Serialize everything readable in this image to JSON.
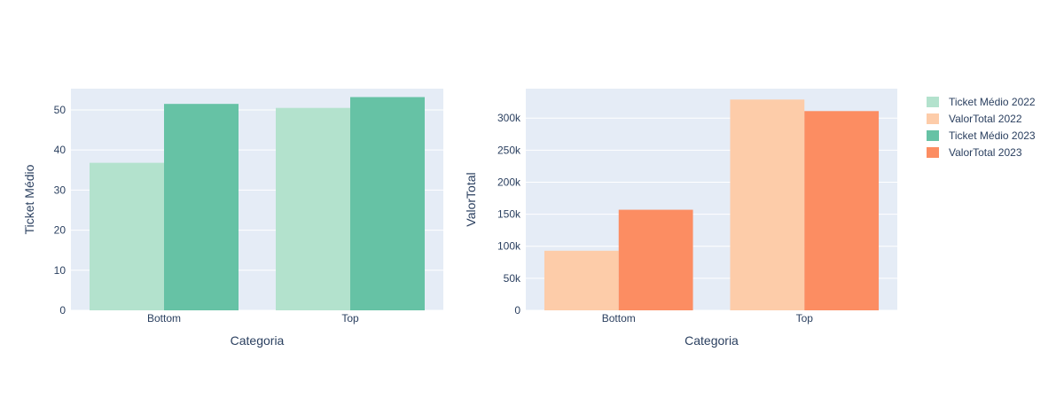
{
  "chart_data": [
    {
      "type": "bar",
      "categories": [
        "Bottom",
        "Top"
      ],
      "series": [
        {
          "name": "Ticket Médio 2022",
          "values": [
            36.8,
            50.5
          ],
          "color": "#b3e2cd"
        },
        {
          "name": "Ticket Médio 2023",
          "values": [
            51.5,
            53.2
          ],
          "color": "#66c2a5"
        }
      ],
      "xlabel": "Categoria",
      "ylabel": "Ticket Médio",
      "ylim": [
        0,
        55.3
      ],
      "yticks": [
        0,
        10,
        20,
        30,
        40,
        50
      ],
      "ytick_labels": [
        "0",
        "10",
        "20",
        "30",
        "40",
        "50"
      ],
      "grid": true
    },
    {
      "type": "bar",
      "categories": [
        "Bottom",
        "Top"
      ],
      "series": [
        {
          "name": "ValorTotal 2022",
          "values": [
            93000,
            329000
          ],
          "color": "#fdcca9"
        },
        {
          "name": "ValorTotal 2023",
          "values": [
            157000,
            311000
          ],
          "color": "#fc8d62"
        }
      ],
      "xlabel": "Categoria",
      "ylabel": "ValorTotal",
      "ylim": [
        0,
        346000
      ],
      "yticks": [
        0,
        50000,
        100000,
        150000,
        200000,
        250000,
        300000
      ],
      "ytick_labels": [
        "0",
        "50k",
        "100k",
        "150k",
        "200k",
        "250k",
        "300k"
      ],
      "grid": true
    }
  ],
  "legend": {
    "placement": "top-right",
    "items": [
      {
        "label": "Ticket Médio 2022",
        "color": "#b3e2cd"
      },
      {
        "label": "ValorTotal 2022",
        "color": "#fdcca9"
      },
      {
        "label": "Ticket Médio 2023",
        "color": "#66c2a5"
      },
      {
        "label": "ValorTotal 2023",
        "color": "#fc8d62"
      }
    ]
  },
  "colors": {
    "plot_background": "#e5ecf6",
    "gridline": "#ffffff",
    "text": "#2a3f5f"
  }
}
